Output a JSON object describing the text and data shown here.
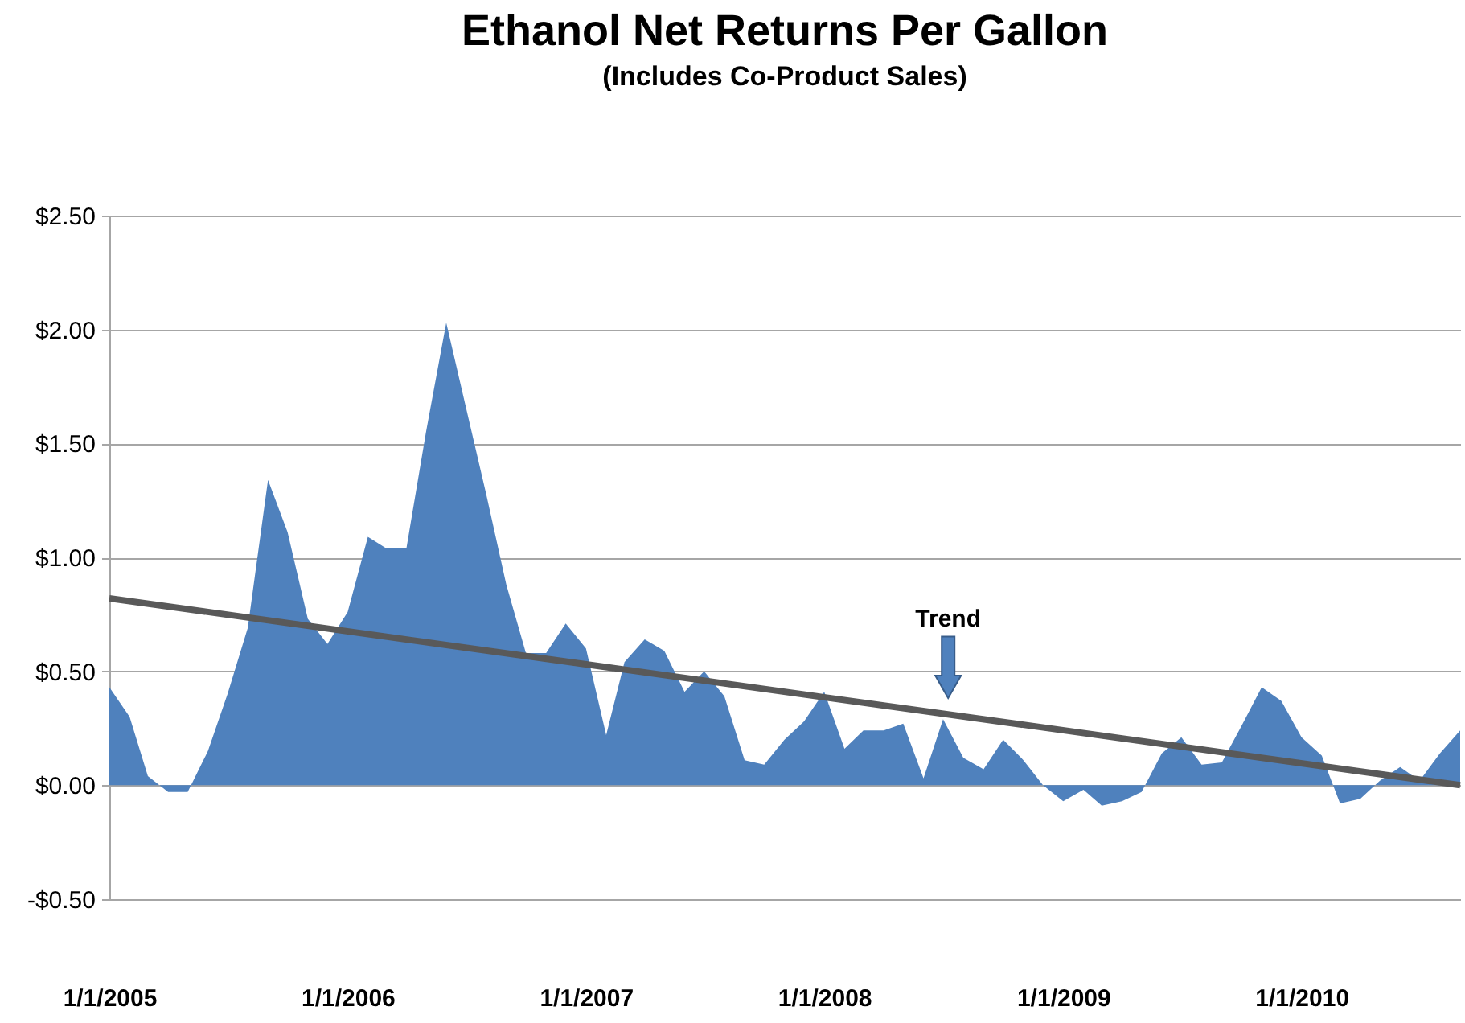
{
  "chart_data": {
    "type": "area",
    "title": "Ethanol Net Returns Per Gallon",
    "subtitle": "(Includes Co-Product Sales)",
    "x": [
      "2005-01",
      "2005-02",
      "2005-03",
      "2005-04",
      "2005-05",
      "2005-06",
      "2005-07",
      "2005-08",
      "2005-09",
      "2005-10",
      "2005-11",
      "2005-12",
      "2006-01",
      "2006-02",
      "2006-03",
      "2006-04",
      "2006-05",
      "2006-06",
      "2006-07",
      "2006-08",
      "2006-09",
      "2006-10",
      "2006-11",
      "2006-12",
      "2007-01",
      "2007-02",
      "2007-03",
      "2007-04",
      "2007-05",
      "2007-06",
      "2007-07",
      "2007-08",
      "2007-09",
      "2007-10",
      "2007-11",
      "2007-12",
      "2008-01",
      "2008-02",
      "2008-03",
      "2008-04",
      "2008-05",
      "2008-06",
      "2008-07",
      "2008-08",
      "2008-09",
      "2008-10",
      "2008-11",
      "2008-12",
      "2009-01",
      "2009-02",
      "2009-03",
      "2009-04",
      "2009-05",
      "2009-06",
      "2009-07",
      "2009-08",
      "2009-09",
      "2009-10",
      "2009-11",
      "2009-12",
      "2010-01",
      "2010-02",
      "2010-03",
      "2010-04",
      "2010-05",
      "2010-06",
      "2010-07",
      "2010-08",
      "2010-09"
    ],
    "series": [
      {
        "color": "#4f81bd",
        "values": [
          0.43,
          0.3,
          0.04,
          -0.03,
          -0.03,
          0.15,
          0.4,
          0.69,
          1.34,
          1.11,
          0.73,
          0.62,
          0.76,
          1.09,
          1.04,
          1.04,
          1.55,
          2.03,
          1.66,
          1.28,
          0.88,
          0.58,
          0.58,
          0.71,
          0.6,
          0.22,
          0.54,
          0.64,
          0.59,
          0.41,
          0.5,
          0.39,
          0.11,
          0.09,
          0.2,
          0.28,
          0.41,
          0.16,
          0.24,
          0.24,
          0.27,
          0.03,
          0.29,
          0.12,
          0.07,
          0.2,
          0.11,
          0.0,
          -0.07,
          -0.02,
          -0.09,
          -0.07,
          -0.03,
          0.14,
          0.21,
          0.09,
          0.1,
          0.26,
          0.43,
          0.37,
          0.21,
          0.13,
          -0.08,
          -0.06,
          0.02,
          0.08,
          0.02,
          0.14,
          0.24
        ]
      },
      {
        "type": "line",
        "color": "#595959",
        "x": [
          "2005-01",
          "2010-09"
        ],
        "values": [
          0.82,
          0.0
        ]
      }
    ],
    "annotations": [
      "Trend"
    ],
    "xlim": [
      "2005-01",
      "2010-09"
    ],
    "xticks": [
      {
        "value": "2005-01-01",
        "label": "1/1/2005"
      },
      {
        "value": "2006-01-01",
        "label": "1/1/2006"
      },
      {
        "value": "2007-01-01",
        "label": "1/1/2007"
      },
      {
        "value": "2008-01-01",
        "label": "1/1/2008"
      },
      {
        "value": "2009-01-01",
        "label": "1/1/2009"
      },
      {
        "value": "2010-01-01",
        "label": "1/1/2010"
      }
    ],
    "ylim": [
      -0.5,
      2.5
    ],
    "yticks": [
      {
        "value": -0.5,
        "label": "-$0.50"
      },
      {
        "value": 0,
        "label": "$0.00"
      },
      {
        "value": 0.5,
        "label": "$0.50"
      },
      {
        "value": 1,
        "label": "$1.00"
      },
      {
        "value": 1.5,
        "label": "$1.50"
      },
      {
        "value": 2,
        "label": "$2.00"
      },
      {
        "value": 2.5,
        "label": "$2.50"
      }
    ],
    "grid": "y"
  }
}
